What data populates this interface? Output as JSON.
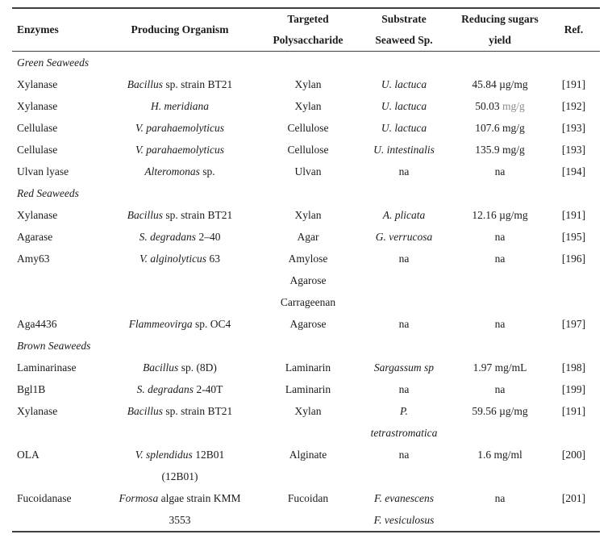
{
  "table": {
    "columns": [
      {
        "name": "enzymes",
        "lines": [
          "Enzymes",
          ""
        ]
      },
      {
        "name": "organism",
        "lines": [
          "Producing Organism",
          ""
        ]
      },
      {
        "name": "polysaccharide",
        "lines": [
          "Targeted",
          "Polysaccharide"
        ]
      },
      {
        "name": "substrate",
        "lines": [
          "Substrate",
          "Seaweed Sp."
        ]
      },
      {
        "name": "yield",
        "lines": [
          "Reducing sugars",
          "yield"
        ]
      },
      {
        "name": "ref",
        "lines": [
          "Ref.",
          ""
        ]
      }
    ],
    "colors": {
      "text": "#1b1b1b",
      "muted_unit": "#8c8c8c",
      "rule": "#3f3f3f"
    },
    "rows": [
      {
        "type": "section",
        "label": "Green Seaweeds"
      },
      {
        "type": "data",
        "cells": [
          [
            [
              {
                "t": "Xylanase"
              }
            ]
          ],
          [
            [
              {
                "t": "Bacillus",
                "i": true
              },
              {
                "t": " sp. strain BT21"
              }
            ]
          ],
          [
            [
              {
                "t": "Xylan"
              }
            ]
          ],
          [
            [
              {
                "t": "U. lactuca",
                "i": true
              }
            ]
          ],
          [
            [
              {
                "t": "45.84 µg/mg"
              }
            ]
          ],
          [
            [
              {
                "t": "[191]"
              }
            ]
          ]
        ]
      },
      {
        "type": "data",
        "cells": [
          [
            [
              {
                "t": "Xylanase"
              }
            ]
          ],
          [
            [
              {
                "t": "H. meridiana",
                "i": true
              }
            ]
          ],
          [
            [
              {
                "t": "Xylan"
              }
            ]
          ],
          [
            [
              {
                "t": "U. lactuca",
                "i": true
              }
            ]
          ],
          [
            [
              {
                "t": "50.03 "
              },
              {
                "t": "mg/g",
                "c": "gray"
              }
            ]
          ],
          [
            [
              {
                "t": "[192]"
              }
            ]
          ]
        ]
      },
      {
        "type": "data",
        "cells": [
          [
            [
              {
                "t": "Cellulase"
              }
            ]
          ],
          [
            [
              {
                "t": "V. parahaemolyticus",
                "i": true
              }
            ]
          ],
          [
            [
              {
                "t": "Cellulose"
              }
            ]
          ],
          [
            [
              {
                "t": "U. lactuca",
                "i": true
              }
            ]
          ],
          [
            [
              {
                "t": "107.6 mg/g"
              }
            ]
          ],
          [
            [
              {
                "t": "[193]"
              }
            ]
          ]
        ]
      },
      {
        "type": "data",
        "cells": [
          [
            [
              {
                "t": "Cellulase"
              }
            ]
          ],
          [
            [
              {
                "t": "V. parahaemolyticus",
                "i": true
              }
            ]
          ],
          [
            [
              {
                "t": "Cellulose"
              }
            ]
          ],
          [
            [
              {
                "t": "U. intestinalis",
                "i": true
              }
            ]
          ],
          [
            [
              {
                "t": "135.9 mg/g"
              }
            ]
          ],
          [
            [
              {
                "t": "[193]"
              }
            ]
          ]
        ]
      },
      {
        "type": "data",
        "cells": [
          [
            [
              {
                "t": "Ulvan lyase"
              }
            ]
          ],
          [
            [
              {
                "t": "Alteromonas",
                "i": true
              },
              {
                "t": " sp."
              }
            ]
          ],
          [
            [
              {
                "t": "Ulvan"
              }
            ]
          ],
          [
            [
              {
                "t": "na"
              }
            ]
          ],
          [
            [
              {
                "t": "na"
              }
            ]
          ],
          [
            [
              {
                "t": "[194]"
              }
            ]
          ]
        ]
      },
      {
        "type": "section",
        "label": "Red Seaweeds"
      },
      {
        "type": "data",
        "cells": [
          [
            [
              {
                "t": "Xylanase"
              }
            ]
          ],
          [
            [
              {
                "t": "Bacillus",
                "i": true
              },
              {
                "t": " sp. strain BT21"
              }
            ]
          ],
          [
            [
              {
                "t": "Xylan"
              }
            ]
          ],
          [
            [
              {
                "t": "A. plicata",
                "i": true
              }
            ]
          ],
          [
            [
              {
                "t": "12.16 µg/mg"
              }
            ]
          ],
          [
            [
              {
                "t": "[191]"
              }
            ]
          ]
        ]
      },
      {
        "type": "data",
        "cells": [
          [
            [
              {
                "t": "Agarase"
              }
            ]
          ],
          [
            [
              {
                "t": "S. degradans",
                "i": true
              },
              {
                "t": " 2–40"
              }
            ]
          ],
          [
            [
              {
                "t": "Agar"
              }
            ]
          ],
          [
            [
              {
                "t": "G. verrucosa",
                "i": true
              }
            ]
          ],
          [
            [
              {
                "t": "na"
              }
            ]
          ],
          [
            [
              {
                "t": "[195]"
              }
            ]
          ]
        ]
      },
      {
        "type": "data",
        "cells": [
          [
            [
              {
                "t": "Amy63"
              }
            ]
          ],
          [
            [
              {
                "t": "V. alginolyticus",
                "i": true
              },
              {
                "t": " 63"
              }
            ]
          ],
          [
            [
              {
                "t": "Amylose"
              }
            ],
            [
              {
                "t": "Agarose"
              }
            ],
            [
              {
                "t": "Carrageenan"
              }
            ]
          ],
          [
            [
              {
                "t": "na"
              }
            ]
          ],
          [
            [
              {
                "t": "na"
              }
            ]
          ],
          [
            [
              {
                "t": "[196]"
              }
            ]
          ]
        ]
      },
      {
        "type": "data",
        "cells": [
          [
            [
              {
                "t": "Aga4436"
              }
            ]
          ],
          [
            [
              {
                "t": "Flammeovirga",
                "i": true
              },
              {
                "t": " sp. OC4"
              }
            ]
          ],
          [
            [
              {
                "t": "Agarose"
              }
            ]
          ],
          [
            [
              {
                "t": "na"
              }
            ]
          ],
          [
            [
              {
                "t": "na"
              }
            ]
          ],
          [
            [
              {
                "t": "[197]"
              }
            ]
          ]
        ]
      },
      {
        "type": "section",
        "label": "Brown Seaweeds"
      },
      {
        "type": "data",
        "cells": [
          [
            [
              {
                "t": "Laminarinase"
              }
            ]
          ],
          [
            [
              {
                "t": "Bacillus",
                "i": true
              },
              {
                "t": " sp. (8D)"
              }
            ]
          ],
          [
            [
              {
                "t": "Laminarin"
              }
            ]
          ],
          [
            [
              {
                "t": "Sargassum sp",
                "i": true
              }
            ]
          ],
          [
            [
              {
                "t": "1.97 mg/mL"
              }
            ]
          ],
          [
            [
              {
                "t": "[198]"
              }
            ]
          ]
        ]
      },
      {
        "type": "data",
        "cells": [
          [
            [
              {
                "t": "Bgl1B"
              }
            ]
          ],
          [
            [
              {
                "t": "S. degradans",
                "i": true
              },
              {
                "t": " 2-40T"
              }
            ]
          ],
          [
            [
              {
                "t": "Laminarin"
              }
            ]
          ],
          [
            [
              {
                "t": "na"
              }
            ]
          ],
          [
            [
              {
                "t": "na"
              }
            ]
          ],
          [
            [
              {
                "t": "[199]"
              }
            ]
          ]
        ]
      },
      {
        "type": "data",
        "cells": [
          [
            [
              {
                "t": "Xylanase"
              }
            ]
          ],
          [
            [
              {
                "t": "Bacillus",
                "i": true
              },
              {
                "t": " sp. strain BT21"
              }
            ]
          ],
          [
            [
              {
                "t": "Xylan"
              }
            ]
          ],
          [
            [
              {
                "t": "P.",
                "i": true
              }
            ],
            [
              {
                "t": "tetrastromatica",
                "i": true
              }
            ]
          ],
          [
            [
              {
                "t": "59.56 µg/mg"
              }
            ]
          ],
          [
            [
              {
                "t": "[191]"
              }
            ]
          ]
        ]
      },
      {
        "type": "data",
        "cells": [
          [
            [
              {
                "t": "OLA"
              }
            ]
          ],
          [
            [
              {
                "t": "V. splendidus",
                "i": true
              },
              {
                "t": " 12B01"
              }
            ],
            [
              {
                "t": "(12B01)"
              }
            ]
          ],
          [
            [
              {
                "t": "Alginate"
              }
            ]
          ],
          [
            [
              {
                "t": "na"
              }
            ]
          ],
          [
            [
              {
                "t": "1.6 mg/ml"
              }
            ]
          ],
          [
            [
              {
                "t": "[200]"
              }
            ]
          ]
        ]
      },
      {
        "type": "data",
        "cells": [
          [
            [
              {
                "t": "Fucoidanase"
              }
            ]
          ],
          [
            [
              {
                "t": "Formosa",
                "i": true
              },
              {
                "t": " algae strain KMM"
              }
            ],
            [
              {
                "t": "3553"
              }
            ]
          ],
          [
            [
              {
                "t": "Fucoidan"
              }
            ]
          ],
          [
            [
              {
                "t": "F. evanescens",
                "i": true
              }
            ],
            [
              {
                "t": "F. vesiculosus",
                "i": true
              }
            ]
          ],
          [
            [
              {
                "t": "na"
              }
            ]
          ],
          [
            [
              {
                "t": "[201]"
              }
            ]
          ]
        ]
      }
    ]
  }
}
